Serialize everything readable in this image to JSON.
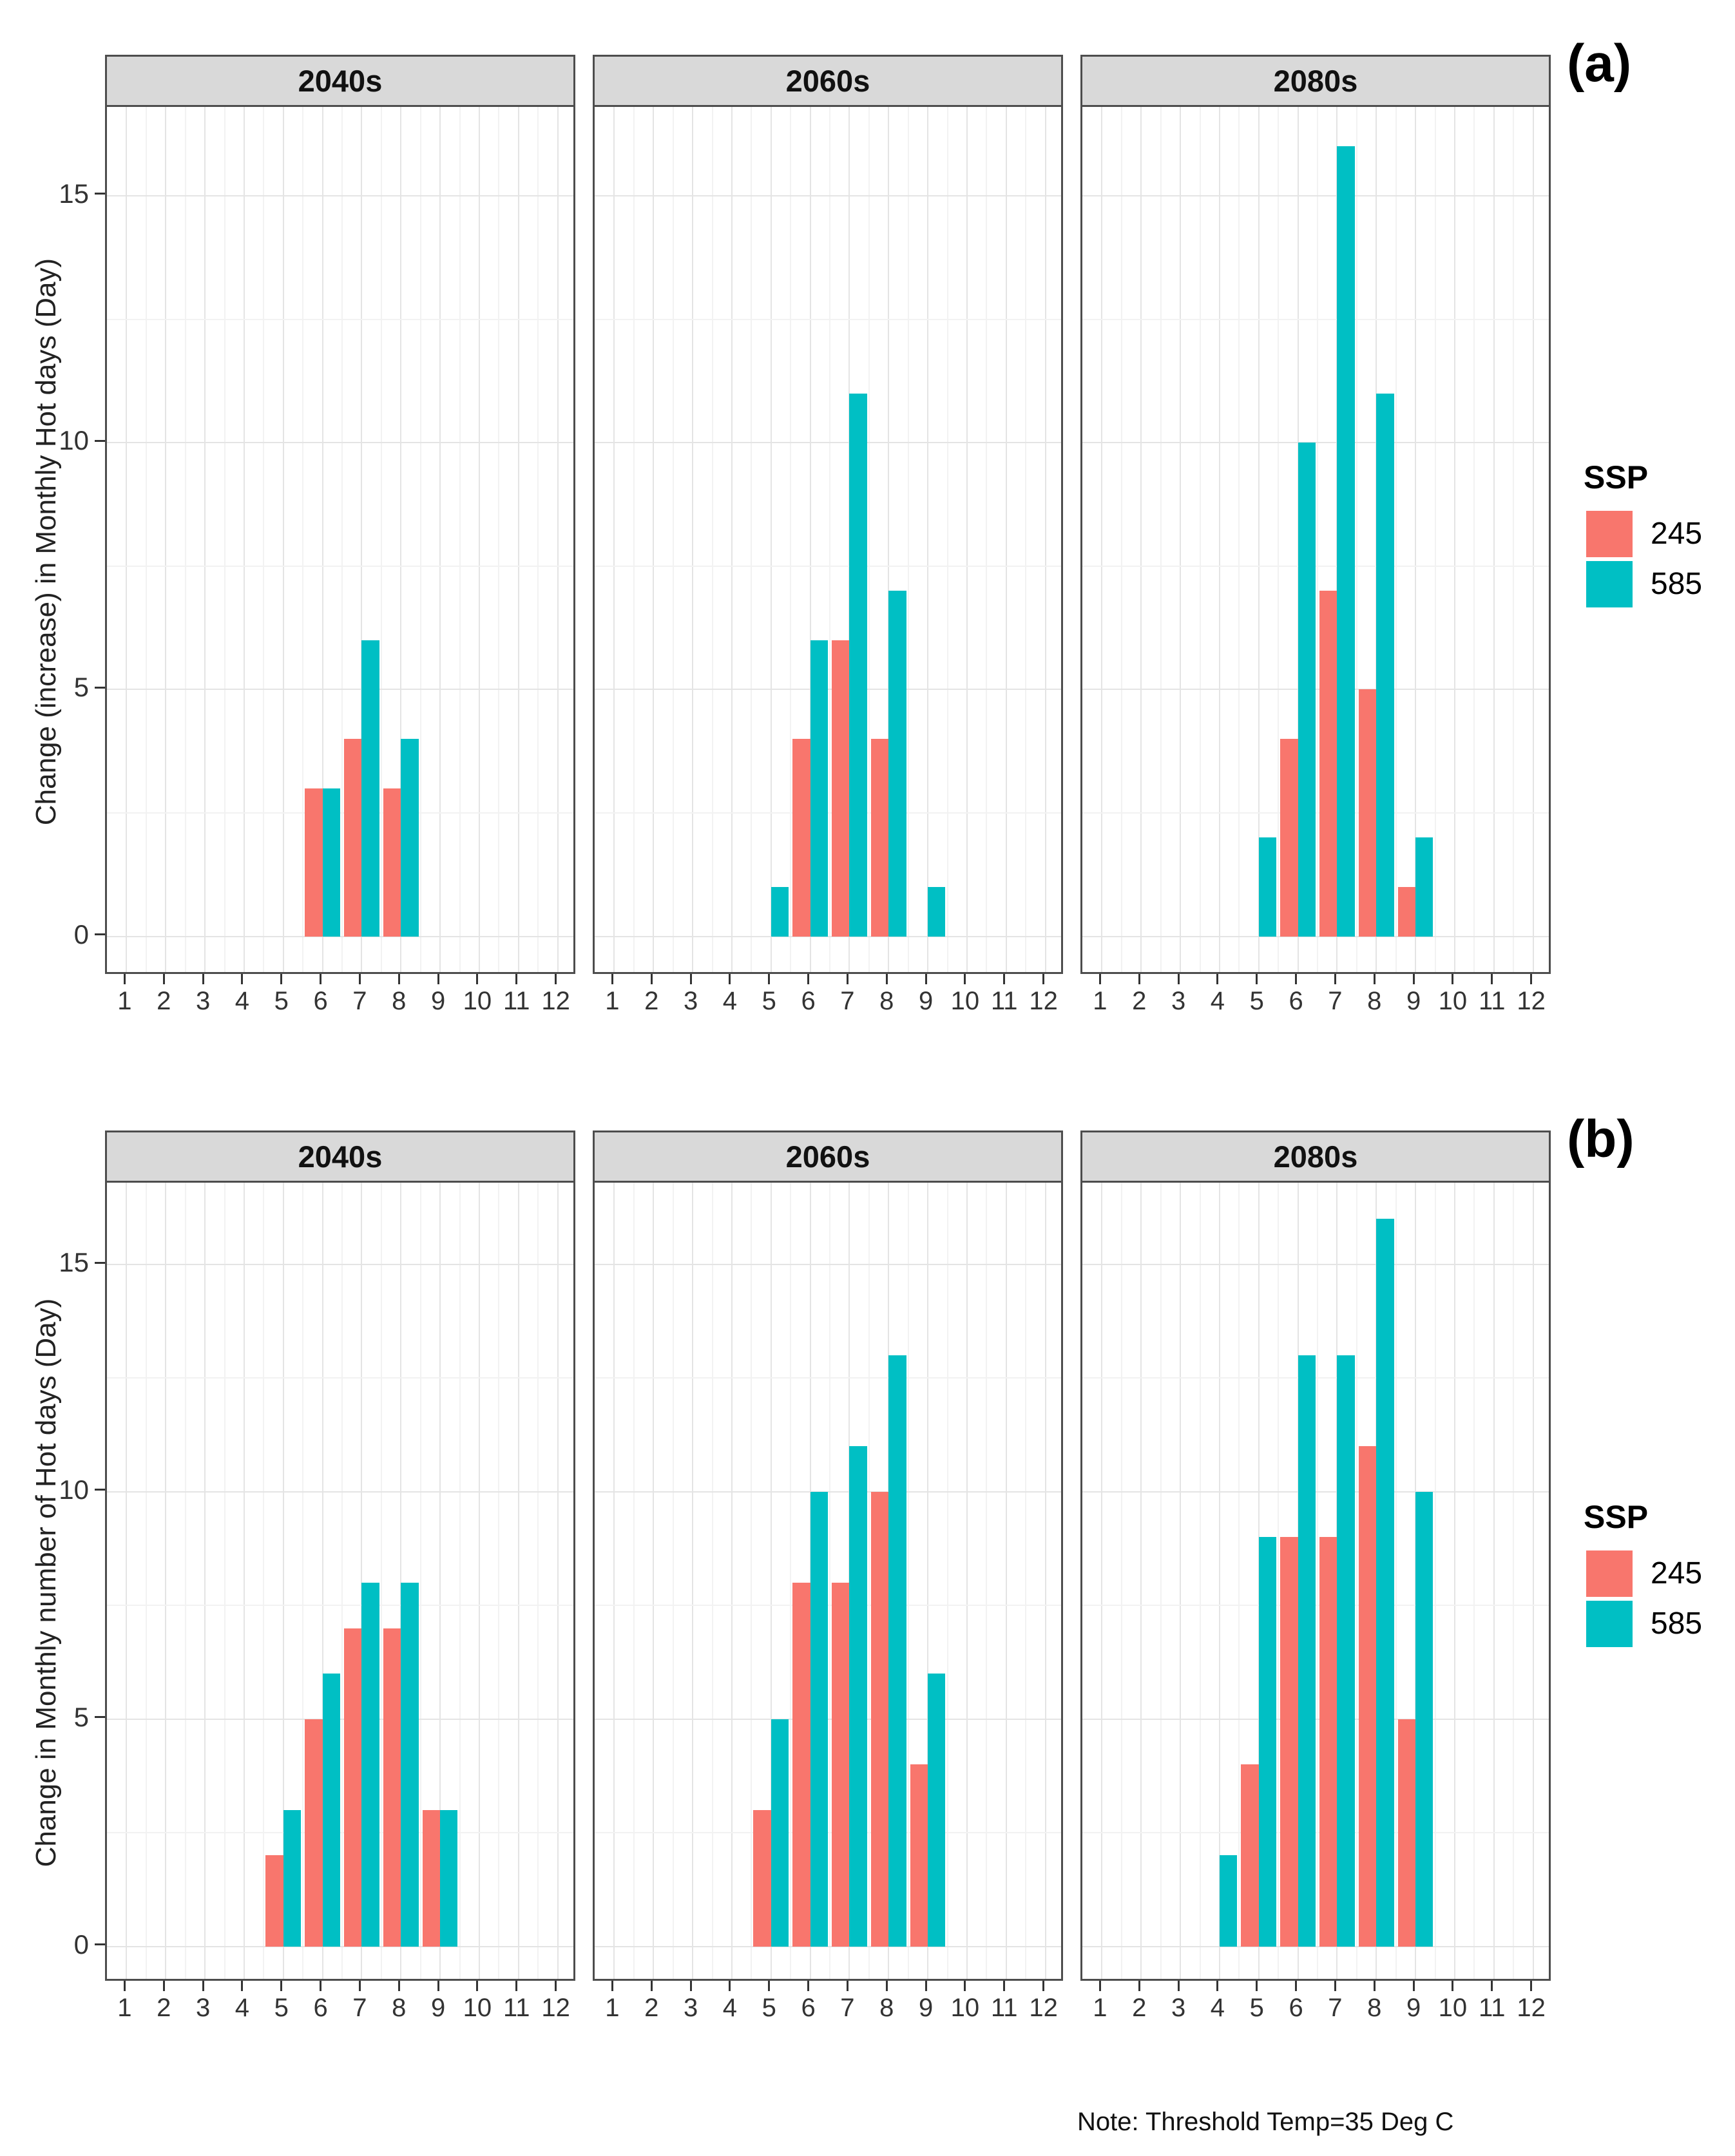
{
  "legend": {
    "title": "SSP",
    "items": [
      {
        "label": "245",
        "color": "#F8766D"
      },
      {
        "label": "585",
        "color": "#00BFC4"
      }
    ]
  },
  "note": "Note: Threshold Temp=35 Deg C",
  "chart_data": [
    {
      "type": "bar",
      "panel_label": "(a)",
      "ylabel": "Change (increase) in Monthly Hot days (Day)",
      "xlabel": "",
      "categories": [
        "1",
        "2",
        "3",
        "4",
        "5",
        "6",
        "7",
        "8",
        "9",
        "10",
        "11",
        "12"
      ],
      "y_ticks": [
        0,
        5,
        10,
        15
      ],
      "y_minor_ticks": [
        2.5,
        7.5,
        12.5
      ],
      "ylim": [
        -0.8,
        16.8
      ],
      "grid": true,
      "legend_position": "right",
      "facets": [
        {
          "title": "2040s",
          "series": [
            {
              "name": "245",
              "color": "#F8766D",
              "values": [
                0,
                0,
                0,
                0,
                0,
                3,
                4,
                3,
                0,
                0,
                0,
                0
              ]
            },
            {
              "name": "585",
              "color": "#00BFC4",
              "values": [
                0,
                0,
                0,
                0,
                0,
                3,
                6,
                4,
                0,
                0,
                0,
                0
              ]
            }
          ]
        },
        {
          "title": "2060s",
          "series": [
            {
              "name": "245",
              "color": "#F8766D",
              "values": [
                0,
                0,
                0,
                0,
                0,
                4,
                6,
                4,
                0,
                0,
                0,
                0
              ]
            },
            {
              "name": "585",
              "color": "#00BFC4",
              "values": [
                0,
                0,
                0,
                0,
                1,
                6,
                11,
                7,
                1,
                0,
                0,
                0
              ]
            }
          ]
        },
        {
          "title": "2080s",
          "series": [
            {
              "name": "245",
              "color": "#F8766D",
              "values": [
                0,
                0,
                0,
                0,
                0,
                4,
                7,
                5,
                1,
                0,
                0,
                0
              ]
            },
            {
              "name": "585",
              "color": "#00BFC4",
              "values": [
                0,
                0,
                0,
                0,
                2,
                10,
                16,
                11,
                2,
                0,
                0,
                0
              ]
            }
          ]
        }
      ]
    },
    {
      "type": "bar",
      "panel_label": "(b)",
      "ylabel": "Change in Monthly number of Hot days (Day)",
      "xlabel": "",
      "categories": [
        "1",
        "2",
        "3",
        "4",
        "5",
        "6",
        "7",
        "8",
        "9",
        "10",
        "11",
        "12"
      ],
      "y_ticks": [
        0,
        5,
        10,
        15
      ],
      "y_minor_ticks": [
        2.5,
        7.5,
        12.5
      ],
      "ylim": [
        -0.8,
        16.8
      ],
      "grid": true,
      "legend_position": "right",
      "facets": [
        {
          "title": "2040s",
          "series": [
            {
              "name": "245",
              "color": "#F8766D",
              "values": [
                0,
                0,
                0,
                0,
                2,
                5,
                7,
                7,
                3,
                0,
                0,
                0
              ]
            },
            {
              "name": "585",
              "color": "#00BFC4",
              "values": [
                0,
                0,
                0,
                0,
                3,
                6,
                8,
                8,
                3,
                0,
                0,
                0
              ]
            }
          ]
        },
        {
          "title": "2060s",
          "series": [
            {
              "name": "245",
              "color": "#F8766D",
              "values": [
                0,
                0,
                0,
                0,
                3,
                8,
                8,
                10,
                4,
                0,
                0,
                0
              ]
            },
            {
              "name": "585",
              "color": "#00BFC4",
              "values": [
                0,
                0,
                0,
                0,
                5,
                10,
                11,
                13,
                6,
                0,
                0,
                0
              ]
            }
          ]
        },
        {
          "title": "2080s",
          "series": [
            {
              "name": "245",
              "color": "#F8766D",
              "values": [
                0,
                0,
                0,
                0,
                4,
                9,
                9,
                11,
                5,
                0,
                0,
                0
              ]
            },
            {
              "name": "585",
              "color": "#00BFC4",
              "values": [
                0,
                0,
                0,
                2,
                9,
                13,
                13,
                16,
                10,
                0,
                0,
                0
              ]
            }
          ]
        }
      ]
    }
  ]
}
